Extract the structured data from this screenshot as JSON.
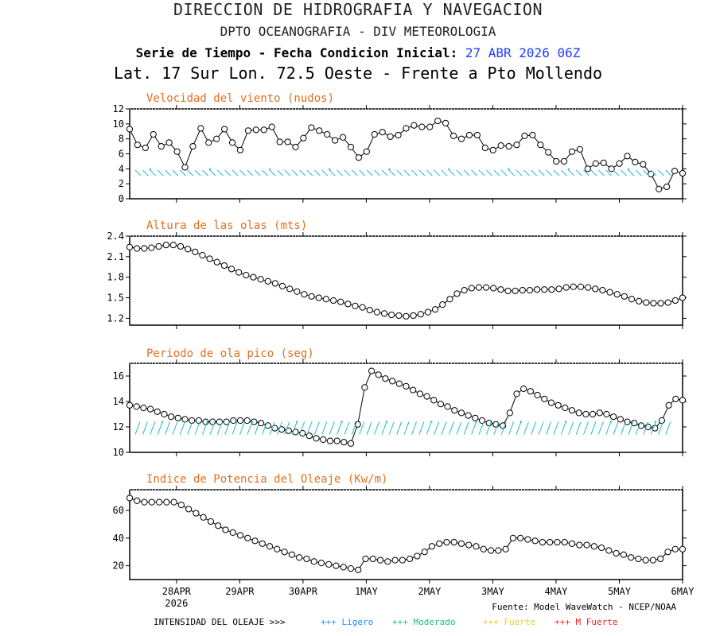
{
  "header": {
    "line1": "DIRECCION DE HIDROGRAFIA Y NAVEGACION",
    "line2": "DPTO OCEANOGRAFIA - DIV METEOROLOGIA",
    "line3_label": "Serie de Tiempo - Fecha Condicion Inicial:",
    "line3_date": "27 ABR 2026 06Z",
    "line4": "Lat. 17 Sur  Lon. 72.5 Oeste - Frente a Pto Mollendo"
  },
  "x_axis": {
    "labels": [
      "28APR",
      "29APR",
      "30APR",
      "1MAY",
      "2MAY",
      "3MAY",
      "4MAY",
      "5MAY",
      "6MAY"
    ],
    "year": "2026"
  },
  "footer": {
    "source": "Fuente: Model WaveWatch - NCEP/NOAA",
    "legend_label": "INTENSIDAD DEL OLEAJE >>>",
    "legend_items": [
      {
        "text": "+++ Ligero",
        "color": "#1e90ff"
      },
      {
        "text": "+++ Moderado",
        "color": "#20c080"
      },
      {
        "text": "+++ Fuerte",
        "color": "#e8d020"
      },
      {
        "text": "+++ M Fuerte",
        "color": "#ff2020"
      }
    ]
  },
  "colors": {
    "title": "#e07020",
    "arrows": "#20c0c0",
    "frame": "#000000"
  },
  "chart_data": [
    {
      "type": "line",
      "title": "Velocidad del viento (nudos)",
      "ylim": [
        0,
        12
      ],
      "yticks": [
        0,
        2,
        4,
        6,
        8,
        10,
        12
      ],
      "has_direction_arrows": true,
      "arrow_level": 3.4,
      "values": [
        9.3,
        7.2,
        6.8,
        8.6,
        7.0,
        7.5,
        6.3,
        4.2,
        7.0,
        9.4,
        7.5,
        8.0,
        9.3,
        7.5,
        6.5,
        9.1,
        9.2,
        9.2,
        9.6,
        7.6,
        7.6,
        6.9,
        8.1,
        9.5,
        9.1,
        8.6,
        7.8,
        8.2,
        6.9,
        5.5,
        6.3,
        8.6,
        8.9,
        8.3,
        8.5,
        9.4,
        9.8,
        9.6,
        9.6,
        10.4,
        10.1,
        8.4,
        8.0,
        8.5,
        8.5,
        6.8,
        6.5,
        7.1,
        7.0,
        7.2,
        8.4,
        8.5,
        7.2,
        6.2,
        5.0,
        5.0,
        6.3,
        6.6,
        4.0,
        4.7,
        4.8,
        4.0,
        4.7,
        5.7,
        4.9,
        4.6,
        3.3,
        1.3,
        1.6,
        3.7,
        3.4
      ]
    },
    {
      "type": "line",
      "title": "Altura de las olas (mts)",
      "ylim": [
        1.1,
        2.4
      ],
      "yticks": [
        1.2,
        1.5,
        1.8,
        2.1,
        2.4
      ],
      "has_direction_arrows": false,
      "values": [
        2.24,
        2.22,
        2.22,
        2.23,
        2.25,
        2.27,
        2.27,
        2.25,
        2.21,
        2.17,
        2.12,
        2.07,
        2.02,
        1.97,
        1.92,
        1.87,
        1.83,
        1.8,
        1.77,
        1.74,
        1.71,
        1.67,
        1.63,
        1.59,
        1.55,
        1.52,
        1.5,
        1.48,
        1.46,
        1.44,
        1.41,
        1.38,
        1.36,
        1.32,
        1.29,
        1.27,
        1.25,
        1.24,
        1.23,
        1.24,
        1.26,
        1.29,
        1.33,
        1.4,
        1.48,
        1.56,
        1.61,
        1.64,
        1.65,
        1.65,
        1.64,
        1.62,
        1.6,
        1.6,
        1.61,
        1.61,
        1.62,
        1.62,
        1.62,
        1.63,
        1.65,
        1.66,
        1.66,
        1.65,
        1.63,
        1.61,
        1.58,
        1.55,
        1.52,
        1.48,
        1.45,
        1.43,
        1.42,
        1.42,
        1.43,
        1.46,
        1.5
      ]
    },
    {
      "type": "line",
      "title": "Periodo de ola pico (seg)",
      "ylim": [
        10,
        17
      ],
      "yticks": [
        10,
        12,
        14,
        16
      ],
      "has_direction_arrows": true,
      "arrow_level": 11.9,
      "values": [
        13.7,
        13.6,
        13.5,
        13.4,
        13.2,
        13.0,
        12.8,
        12.7,
        12.6,
        12.5,
        12.5,
        12.4,
        12.4,
        12.4,
        12.4,
        12.5,
        12.5,
        12.5,
        12.4,
        12.3,
        12.1,
        11.9,
        11.8,
        11.7,
        11.6,
        11.5,
        11.3,
        11.1,
        11.0,
        10.9,
        10.9,
        10.8,
        10.7,
        12.2,
        15.1,
        16.4,
        16.1,
        15.8,
        15.6,
        15.4,
        15.2,
        14.9,
        14.6,
        14.4,
        14.1,
        13.8,
        13.6,
        13.3,
        13.1,
        12.9,
        12.7,
        12.5,
        12.3,
        12.2,
        12.1,
        13.1,
        14.6,
        15.0,
        14.8,
        14.5,
        14.2,
        13.9,
        13.7,
        13.5,
        13.3,
        13.1,
        13.0,
        13.0,
        13.1,
        13.0,
        12.8,
        12.6,
        12.4,
        12.3,
        12.1,
        12.0,
        11.9,
        12.5,
        13.7,
        14.2,
        14.1
      ]
    },
    {
      "type": "line",
      "title": "Indice de Potencia del Oleaje (Kw/m)",
      "ylim": [
        10,
        75
      ],
      "yticks": [
        20,
        40,
        60
      ],
      "has_direction_arrows": false,
      "values": [
        69,
        67,
        66,
        66,
        66,
        66,
        66,
        64,
        61,
        58,
        55,
        52,
        49,
        46,
        44,
        42,
        40,
        38,
        36,
        34,
        32,
        30,
        28,
        26,
        25,
        23,
        22,
        21,
        20,
        19,
        18,
        17,
        25,
        25,
        24,
        23,
        24,
        24,
        25,
        27,
        30,
        34,
        36,
        37,
        37,
        36,
        35,
        34,
        32,
        31,
        31,
        32,
        40,
        40,
        39,
        38,
        37,
        37,
        37,
        37,
        36,
        35,
        35,
        34,
        33,
        31,
        29,
        28,
        26,
        25,
        24,
        24,
        25,
        30,
        32,
        32
      ]
    }
  ]
}
